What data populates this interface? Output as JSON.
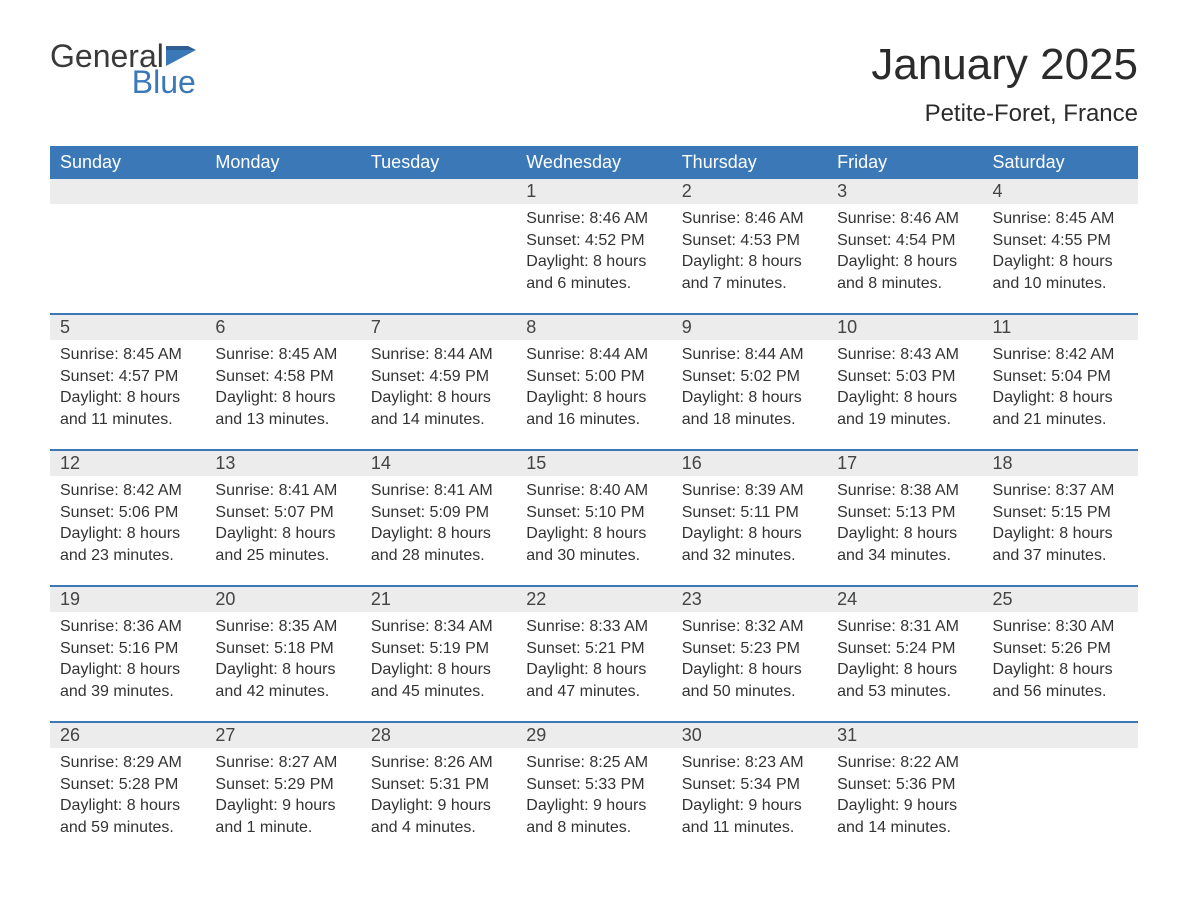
{
  "brand": {
    "general": "General",
    "blue": "Blue"
  },
  "title": "January 2025",
  "location": "Petite-Foret, France",
  "colors": {
    "header_bg": "#3b78b8",
    "header_text": "#ffffff",
    "daynum_bg": "#ececec",
    "row_border": "#3b78b8",
    "body_text": "#333333",
    "page_bg": "#ffffff",
    "logo_gray": "#3a3a3a",
    "logo_blue": "#3b78b8"
  },
  "fonts": {
    "title_size_pt": 33,
    "location_size_pt": 18,
    "header_size_pt": 14,
    "body_size_pt": 12
  },
  "day_headers": [
    "Sunday",
    "Monday",
    "Tuesday",
    "Wednesday",
    "Thursday",
    "Friday",
    "Saturday"
  ],
  "weeks": [
    {
      "nums": [
        "",
        "",
        "",
        "1",
        "2",
        "3",
        "4"
      ],
      "cells": [
        {
          "sunrise": "",
          "sunset": "",
          "daylight1": "",
          "daylight2": ""
        },
        {
          "sunrise": "",
          "sunset": "",
          "daylight1": "",
          "daylight2": ""
        },
        {
          "sunrise": "",
          "sunset": "",
          "daylight1": "",
          "daylight2": ""
        },
        {
          "sunrise": "Sunrise: 8:46 AM",
          "sunset": "Sunset: 4:52 PM",
          "daylight1": "Daylight: 8 hours",
          "daylight2": "and 6 minutes."
        },
        {
          "sunrise": "Sunrise: 8:46 AM",
          "sunset": "Sunset: 4:53 PM",
          "daylight1": "Daylight: 8 hours",
          "daylight2": "and 7 minutes."
        },
        {
          "sunrise": "Sunrise: 8:46 AM",
          "sunset": "Sunset: 4:54 PM",
          "daylight1": "Daylight: 8 hours",
          "daylight2": "and 8 minutes."
        },
        {
          "sunrise": "Sunrise: 8:45 AM",
          "sunset": "Sunset: 4:55 PM",
          "daylight1": "Daylight: 8 hours",
          "daylight2": "and 10 minutes."
        }
      ]
    },
    {
      "nums": [
        "5",
        "6",
        "7",
        "8",
        "9",
        "10",
        "11"
      ],
      "cells": [
        {
          "sunrise": "Sunrise: 8:45 AM",
          "sunset": "Sunset: 4:57 PM",
          "daylight1": "Daylight: 8 hours",
          "daylight2": "and 11 minutes."
        },
        {
          "sunrise": "Sunrise: 8:45 AM",
          "sunset": "Sunset: 4:58 PM",
          "daylight1": "Daylight: 8 hours",
          "daylight2": "and 13 minutes."
        },
        {
          "sunrise": "Sunrise: 8:44 AM",
          "sunset": "Sunset: 4:59 PM",
          "daylight1": "Daylight: 8 hours",
          "daylight2": "and 14 minutes."
        },
        {
          "sunrise": "Sunrise: 8:44 AM",
          "sunset": "Sunset: 5:00 PM",
          "daylight1": "Daylight: 8 hours",
          "daylight2": "and 16 minutes."
        },
        {
          "sunrise": "Sunrise: 8:44 AM",
          "sunset": "Sunset: 5:02 PM",
          "daylight1": "Daylight: 8 hours",
          "daylight2": "and 18 minutes."
        },
        {
          "sunrise": "Sunrise: 8:43 AM",
          "sunset": "Sunset: 5:03 PM",
          "daylight1": "Daylight: 8 hours",
          "daylight2": "and 19 minutes."
        },
        {
          "sunrise": "Sunrise: 8:42 AM",
          "sunset": "Sunset: 5:04 PM",
          "daylight1": "Daylight: 8 hours",
          "daylight2": "and 21 minutes."
        }
      ]
    },
    {
      "nums": [
        "12",
        "13",
        "14",
        "15",
        "16",
        "17",
        "18"
      ],
      "cells": [
        {
          "sunrise": "Sunrise: 8:42 AM",
          "sunset": "Sunset: 5:06 PM",
          "daylight1": "Daylight: 8 hours",
          "daylight2": "and 23 minutes."
        },
        {
          "sunrise": "Sunrise: 8:41 AM",
          "sunset": "Sunset: 5:07 PM",
          "daylight1": "Daylight: 8 hours",
          "daylight2": "and 25 minutes."
        },
        {
          "sunrise": "Sunrise: 8:41 AM",
          "sunset": "Sunset: 5:09 PM",
          "daylight1": "Daylight: 8 hours",
          "daylight2": "and 28 minutes."
        },
        {
          "sunrise": "Sunrise: 8:40 AM",
          "sunset": "Sunset: 5:10 PM",
          "daylight1": "Daylight: 8 hours",
          "daylight2": "and 30 minutes."
        },
        {
          "sunrise": "Sunrise: 8:39 AM",
          "sunset": "Sunset: 5:11 PM",
          "daylight1": "Daylight: 8 hours",
          "daylight2": "and 32 minutes."
        },
        {
          "sunrise": "Sunrise: 8:38 AM",
          "sunset": "Sunset: 5:13 PM",
          "daylight1": "Daylight: 8 hours",
          "daylight2": "and 34 minutes."
        },
        {
          "sunrise": "Sunrise: 8:37 AM",
          "sunset": "Sunset: 5:15 PM",
          "daylight1": "Daylight: 8 hours",
          "daylight2": "and 37 minutes."
        }
      ]
    },
    {
      "nums": [
        "19",
        "20",
        "21",
        "22",
        "23",
        "24",
        "25"
      ],
      "cells": [
        {
          "sunrise": "Sunrise: 8:36 AM",
          "sunset": "Sunset: 5:16 PM",
          "daylight1": "Daylight: 8 hours",
          "daylight2": "and 39 minutes."
        },
        {
          "sunrise": "Sunrise: 8:35 AM",
          "sunset": "Sunset: 5:18 PM",
          "daylight1": "Daylight: 8 hours",
          "daylight2": "and 42 minutes."
        },
        {
          "sunrise": "Sunrise: 8:34 AM",
          "sunset": "Sunset: 5:19 PM",
          "daylight1": "Daylight: 8 hours",
          "daylight2": "and 45 minutes."
        },
        {
          "sunrise": "Sunrise: 8:33 AM",
          "sunset": "Sunset: 5:21 PM",
          "daylight1": "Daylight: 8 hours",
          "daylight2": "and 47 minutes."
        },
        {
          "sunrise": "Sunrise: 8:32 AM",
          "sunset": "Sunset: 5:23 PM",
          "daylight1": "Daylight: 8 hours",
          "daylight2": "and 50 minutes."
        },
        {
          "sunrise": "Sunrise: 8:31 AM",
          "sunset": "Sunset: 5:24 PM",
          "daylight1": "Daylight: 8 hours",
          "daylight2": "and 53 minutes."
        },
        {
          "sunrise": "Sunrise: 8:30 AM",
          "sunset": "Sunset: 5:26 PM",
          "daylight1": "Daylight: 8 hours",
          "daylight2": "and 56 minutes."
        }
      ]
    },
    {
      "nums": [
        "26",
        "27",
        "28",
        "29",
        "30",
        "31",
        ""
      ],
      "cells": [
        {
          "sunrise": "Sunrise: 8:29 AM",
          "sunset": "Sunset: 5:28 PM",
          "daylight1": "Daylight: 8 hours",
          "daylight2": "and 59 minutes."
        },
        {
          "sunrise": "Sunrise: 8:27 AM",
          "sunset": "Sunset: 5:29 PM",
          "daylight1": "Daylight: 9 hours",
          "daylight2": "and 1 minute."
        },
        {
          "sunrise": "Sunrise: 8:26 AM",
          "sunset": "Sunset: 5:31 PM",
          "daylight1": "Daylight: 9 hours",
          "daylight2": "and 4 minutes."
        },
        {
          "sunrise": "Sunrise: 8:25 AM",
          "sunset": "Sunset: 5:33 PM",
          "daylight1": "Daylight: 9 hours",
          "daylight2": "and 8 minutes."
        },
        {
          "sunrise": "Sunrise: 8:23 AM",
          "sunset": "Sunset: 5:34 PM",
          "daylight1": "Daylight: 9 hours",
          "daylight2": "and 11 minutes."
        },
        {
          "sunrise": "Sunrise: 8:22 AM",
          "sunset": "Sunset: 5:36 PM",
          "daylight1": "Daylight: 9 hours",
          "daylight2": "and 14 minutes."
        },
        {
          "sunrise": "",
          "sunset": "",
          "daylight1": "",
          "daylight2": ""
        }
      ]
    }
  ]
}
